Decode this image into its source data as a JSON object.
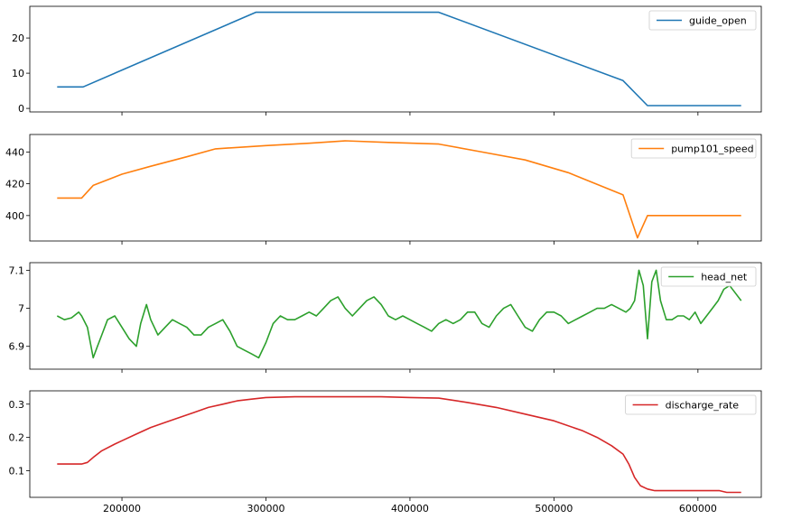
{
  "chart_data": [
    {
      "type": "line",
      "series": [
        {
          "name": "guide_open",
          "color": "#1f77b4",
          "x": [
            155000,
            173000,
            293000,
            420000,
            548000,
            565000,
            630000
          ],
          "y": [
            6.1,
            6.1,
            27.3,
            27.3,
            7.9,
            0.8,
            0.8
          ]
        }
      ],
      "xlim": [
        136000,
        644000
      ],
      "ylim": [
        -1,
        29
      ],
      "yticks": [
        0,
        10,
        20
      ],
      "xticks": [
        200000,
        300000,
        400000,
        500000,
        600000
      ],
      "show_xtick_labels": false,
      "legend": "top-right",
      "grid": false
    },
    {
      "type": "line",
      "series": [
        {
          "name": "pump101_speed",
          "color": "#ff7f0e",
          "x": [
            155000,
            172000,
            180000,
            200000,
            220000,
            245000,
            265000,
            300000,
            330000,
            355000,
            385000,
            420000,
            450000,
            480000,
            510000,
            548000,
            558000,
            565000,
            600000,
            630000
          ],
          "y": [
            411,
            411,
            419,
            426,
            431,
            437,
            442,
            444,
            445.5,
            447,
            446,
            445,
            440,
            435,
            427,
            413,
            386,
            400,
            400,
            400
          ]
        }
      ],
      "xlim": [
        136000,
        644000
      ],
      "ylim": [
        384,
        451
      ],
      "yticks": [
        400,
        420,
        440
      ],
      "xticks": [
        200000,
        300000,
        400000,
        500000,
        600000
      ],
      "show_xtick_labels": false,
      "legend": "top-right",
      "grid": false
    },
    {
      "type": "line",
      "series": [
        {
          "name": "head_net",
          "color": "#2ca02c",
          "x": [
            155000,
            160000,
            165000,
            170000,
            172000,
            176000,
            180000,
            183000,
            186000,
            190000,
            195000,
            200000,
            205000,
            210000,
            213000,
            217000,
            220000,
            225000,
            230000,
            235000,
            240000,
            245000,
            250000,
            255000,
            260000,
            265000,
            270000,
            275000,
            280000,
            285000,
            290000,
            295000,
            300000,
            305000,
            310000,
            315000,
            320000,
            325000,
            330000,
            335000,
            340000,
            345000,
            350000,
            355000,
            360000,
            365000,
            370000,
            375000,
            380000,
            385000,
            390000,
            395000,
            400000,
            405000,
            410000,
            415000,
            420000,
            425000,
            430000,
            435000,
            440000,
            445000,
            450000,
            455000,
            460000,
            465000,
            470000,
            475000,
            480000,
            485000,
            490000,
            495000,
            500000,
            505000,
            510000,
            515000,
            520000,
            525000,
            530000,
            535000,
            540000,
            545000,
            550000,
            553000,
            556000,
            559000,
            562000,
            565000,
            568000,
            571000,
            574000,
            578000,
            582000,
            586000,
            590000,
            594000,
            598000,
            602000,
            606000,
            610000,
            614000,
            618000,
            622000,
            626000,
            630000
          ],
          "y": [
            6.98,
            6.97,
            6.975,
            6.99,
            6.98,
            6.95,
            6.87,
            6.9,
            6.93,
            6.97,
            6.98,
            6.95,
            6.92,
            6.9,
            6.96,
            7.01,
            6.97,
            6.93,
            6.95,
            6.97,
            6.96,
            6.95,
            6.93,
            6.93,
            6.95,
            6.96,
            6.97,
            6.94,
            6.9,
            6.89,
            6.88,
            6.87,
            6.91,
            6.96,
            6.98,
            6.97,
            6.97,
            6.98,
            6.99,
            6.98,
            7.0,
            7.02,
            7.03,
            7.0,
            6.98,
            7.0,
            7.02,
            7.03,
            7.01,
            6.98,
            6.97,
            6.98,
            6.97,
            6.96,
            6.95,
            6.94,
            6.96,
            6.97,
            6.96,
            6.97,
            6.99,
            6.99,
            6.96,
            6.95,
            6.98,
            7.0,
            7.01,
            6.98,
            6.95,
            6.94,
            6.97,
            6.99,
            6.99,
            6.98,
            6.96,
            6.97,
            6.98,
            6.99,
            7.0,
            7.0,
            7.01,
            7.0,
            6.99,
            7.0,
            7.02,
            7.1,
            7.06,
            6.92,
            7.07,
            7.1,
            7.02,
            6.97,
            6.97,
            6.98,
            6.98,
            6.97,
            6.99,
            6.96,
            6.98,
            7.0,
            7.02,
            7.05,
            7.06,
            7.04,
            7.02
          ]
        }
      ],
      "xlim": [
        136000,
        644000
      ],
      "ylim": [
        6.84,
        7.12
      ],
      "yticks": [
        6.9,
        7.0,
        7.1
      ],
      "xticks": [
        200000,
        300000,
        400000,
        500000,
        600000
      ],
      "show_xtick_labels": false,
      "legend": "top-right",
      "grid": false
    },
    {
      "type": "line",
      "series": [
        {
          "name": "discharge_rate",
          "color": "#d62728",
          "x": [
            155000,
            165000,
            172000,
            176000,
            180000,
            186000,
            195000,
            200000,
            210000,
            220000,
            230000,
            240000,
            250000,
            260000,
            270000,
            280000,
            290000,
            300000,
            320000,
            340000,
            360000,
            380000,
            400000,
            420000,
            440000,
            460000,
            480000,
            500000,
            520000,
            530000,
            540000,
            548000,
            552000,
            556000,
            560000,
            565000,
            570000,
            580000,
            600000,
            615000,
            620000,
            630000
          ],
          "y": [
            0.12,
            0.12,
            0.12,
            0.125,
            0.14,
            0.16,
            0.18,
            0.19,
            0.21,
            0.23,
            0.245,
            0.26,
            0.275,
            0.29,
            0.3,
            0.31,
            0.315,
            0.32,
            0.322,
            0.322,
            0.322,
            0.322,
            0.32,
            0.318,
            0.305,
            0.29,
            0.27,
            0.25,
            0.22,
            0.2,
            0.175,
            0.15,
            0.12,
            0.08,
            0.055,
            0.045,
            0.04,
            0.04,
            0.04,
            0.04,
            0.035,
            0.035
          ]
        }
      ],
      "xlim": [
        136000,
        644000
      ],
      "ylim": [
        0.02,
        0.34
      ],
      "yticks": [
        0.1,
        0.2,
        0.3
      ],
      "xticks": [
        200000,
        300000,
        400000,
        500000,
        600000
      ],
      "xtick_labels": [
        "200000",
        "300000",
        "400000",
        "500000",
        "600000"
      ],
      "show_xtick_labels": true,
      "legend": "top-right",
      "grid": false
    }
  ]
}
